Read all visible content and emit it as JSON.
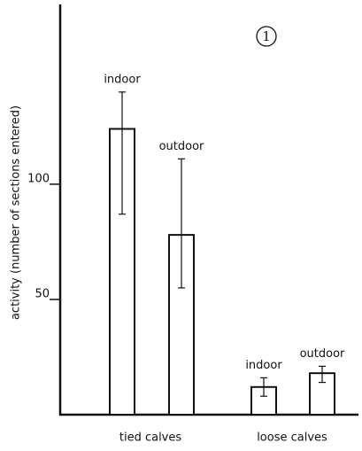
{
  "chart_data": {
    "type": "bar",
    "y_label": "activity (number of sections entered)",
    "annotation": "1",
    "categories": [
      "indoor",
      "outdoor",
      "indoor",
      "outdoor"
    ],
    "group_labels": [
      "tied calves",
      "loose calves"
    ],
    "values": [
      124,
      78,
      12,
      18
    ],
    "error_high": [
      140,
      111,
      16,
      21
    ],
    "error_low": [
      87,
      55,
      8,
      14
    ],
    "color": "#ffffff",
    "ylim": [
      0,
      178
    ],
    "yticks": [
      50,
      100
    ],
    "grid": false
  }
}
